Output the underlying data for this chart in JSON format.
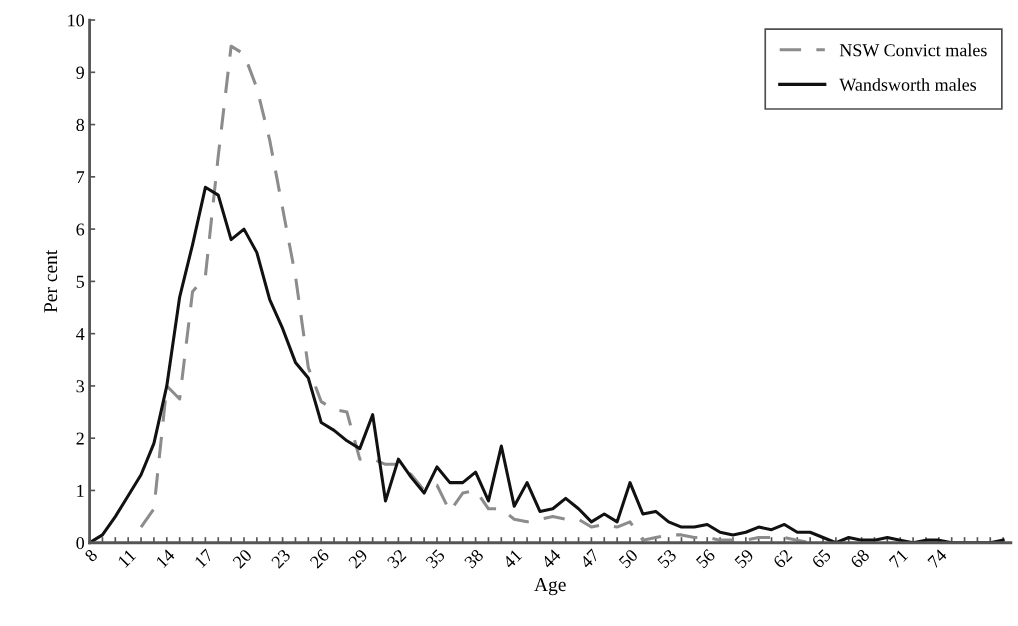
{
  "chart_data": {
    "type": "line",
    "xlabel": "Age",
    "ylabel": "Per cent",
    "xlim": [
      8,
      79.6
    ],
    "ylim": [
      0,
      10
    ],
    "xticks": [
      8,
      {
        "value": 9,
        "label": null
      },
      {
        "value": 10,
        "label": null
      },
      11,
      {
        "value": 12,
        "label": null
      },
      {
        "value": 13,
        "label": null
      },
      14,
      {
        "value": 15,
        "label": null
      },
      {
        "value": 16,
        "label": null
      },
      17,
      {
        "value": 18,
        "label": null
      },
      {
        "value": 19,
        "label": null
      },
      20,
      {
        "value": 21,
        "label": null
      },
      {
        "value": 22,
        "label": null
      },
      23,
      {
        "value": 24,
        "label": null
      },
      {
        "value": 25,
        "label": null
      },
      26,
      {
        "value": 27,
        "label": null
      },
      {
        "value": 28,
        "label": null
      },
      29,
      {
        "value": 30,
        "label": null
      },
      {
        "value": 31,
        "label": null
      },
      32,
      {
        "value": 33,
        "label": null
      },
      {
        "value": 34,
        "label": null
      },
      35,
      {
        "value": 36,
        "label": null
      },
      {
        "value": 37,
        "label": null
      },
      38,
      {
        "value": 39,
        "label": null
      },
      {
        "value": 40,
        "label": null
      },
      41,
      {
        "value": 42,
        "label": null
      },
      {
        "value": 43,
        "label": null
      },
      44,
      {
        "value": 45,
        "label": null
      },
      {
        "value": 46,
        "label": null
      },
      47,
      {
        "value": 48,
        "label": null
      },
      {
        "value": 49,
        "label": null
      },
      50,
      {
        "value": 51,
        "label": null
      },
      {
        "value": 52,
        "label": null
      },
      53,
      {
        "value": 54,
        "label": null
      },
      {
        "value": 55,
        "label": null
      },
      56,
      {
        "value": 57,
        "label": null
      },
      {
        "value": 58,
        "label": null
      },
      59,
      {
        "value": 60,
        "label": null
      },
      {
        "value": 61,
        "label": null
      },
      62,
      {
        "value": 63,
        "label": null
      },
      {
        "value": 64,
        "label": null
      },
      65,
      {
        "value": 66,
        "label": null
      },
      {
        "value": 67,
        "label": null
      },
      68,
      {
        "value": 69,
        "label": null
      },
      {
        "value": 70,
        "label": null
      },
      71,
      {
        "value": 72,
        "label": null
      },
      {
        "value": 73,
        "label": null
      },
      74,
      {
        "value": 75,
        "label": null
      },
      {
        "value": 76,
        "label": null
      },
      {
        "value": 77,
        "label": null
      },
      {
        "value": 78,
        "label": null
      },
      {
        "value": 79,
        "label": null
      }
    ],
    "yticks": [
      0,
      1,
      2,
      3,
      4,
      5,
      6,
      7,
      8,
      9,
      10
    ],
    "grid": false,
    "legend": "top right",
    "marker": "none",
    "series": [
      {
        "name": "NSW Convict males",
        "color": "#8c8c8c",
        "line_style": "dashed",
        "x": [
          12,
          13,
          14,
          15,
          16,
          17,
          18,
          19,
          20,
          21,
          22,
          23,
          24,
          25,
          26,
          27,
          28,
          29,
          30,
          31,
          32,
          33,
          34,
          35,
          36,
          37,
          38,
          39,
          40,
          41,
          42,
          43,
          44,
          45,
          46,
          47,
          48,
          49,
          50,
          51,
          52,
          53,
          54,
          55,
          56,
          57,
          58,
          59,
          60,
          61,
          62,
          63,
          64,
          65
        ],
        "values": [
          0.3,
          0.65,
          3.0,
          2.75,
          4.8,
          5.1,
          7.4,
          9.5,
          9.35,
          8.7,
          7.7,
          6.4,
          5.1,
          3.35,
          2.7,
          2.55,
          2.5,
          1.6,
          1.6,
          1.5,
          1.5,
          1.3,
          1.0,
          1.1,
          0.6,
          0.95,
          1.0,
          0.65,
          0.65,
          0.45,
          0.4,
          0.45,
          0.5,
          0.45,
          0.45,
          0.3,
          0.35,
          0.3,
          0.4,
          0.05,
          0.1,
          0.15,
          0.15,
          0.1,
          0.1,
          0.05,
          0.05,
          0.05,
          0.1,
          0.1,
          0.1,
          0.05,
          0,
          0
        ]
      },
      {
        "name": "Wandsworth males",
        "color": "#111111",
        "line_style": "solid",
        "x": [
          8,
          9,
          10,
          11,
          12,
          13,
          14,
          15,
          16,
          17,
          18,
          19,
          20,
          21,
          22,
          23,
          24,
          25,
          26,
          27,
          28,
          29,
          30,
          31,
          32,
          33,
          34,
          35,
          36,
          37,
          38,
          39,
          40,
          41,
          42,
          43,
          44,
          45,
          46,
          47,
          48,
          49,
          50,
          51,
          52,
          53,
          54,
          55,
          56,
          57,
          58,
          59,
          60,
          61,
          62,
          63,
          64,
          65,
          66,
          67,
          68,
          69,
          70,
          71,
          72,
          73,
          74,
          75,
          76,
          77,
          78,
          79
        ],
        "values": [
          0,
          0.15,
          0.5,
          0.9,
          1.3,
          1.9,
          3.0,
          4.7,
          5.7,
          6.8,
          6.65,
          5.8,
          6.0,
          5.55,
          4.65,
          4.1,
          3.45,
          3.15,
          2.3,
          2.15,
          1.95,
          1.8,
          2.45,
          0.8,
          1.6,
          1.25,
          0.95,
          1.45,
          1.15,
          1.15,
          1.35,
          0.8,
          1.85,
          0.7,
          1.15,
          0.6,
          0.65,
          0.85,
          0.65,
          0.4,
          0.55,
          0.4,
          1.15,
          0.55,
          0.6,
          0.4,
          0.3,
          0.3,
          0.35,
          0.2,
          0.15,
          0.2,
          0.3,
          0.25,
          0.35,
          0.2,
          0.2,
          0.1,
          0,
          0.1,
          0.05,
          0.05,
          0.1,
          0.05,
          0,
          0.05,
          0.05,
          0,
          0,
          0,
          0,
          0.05
        ]
      }
    ]
  }
}
